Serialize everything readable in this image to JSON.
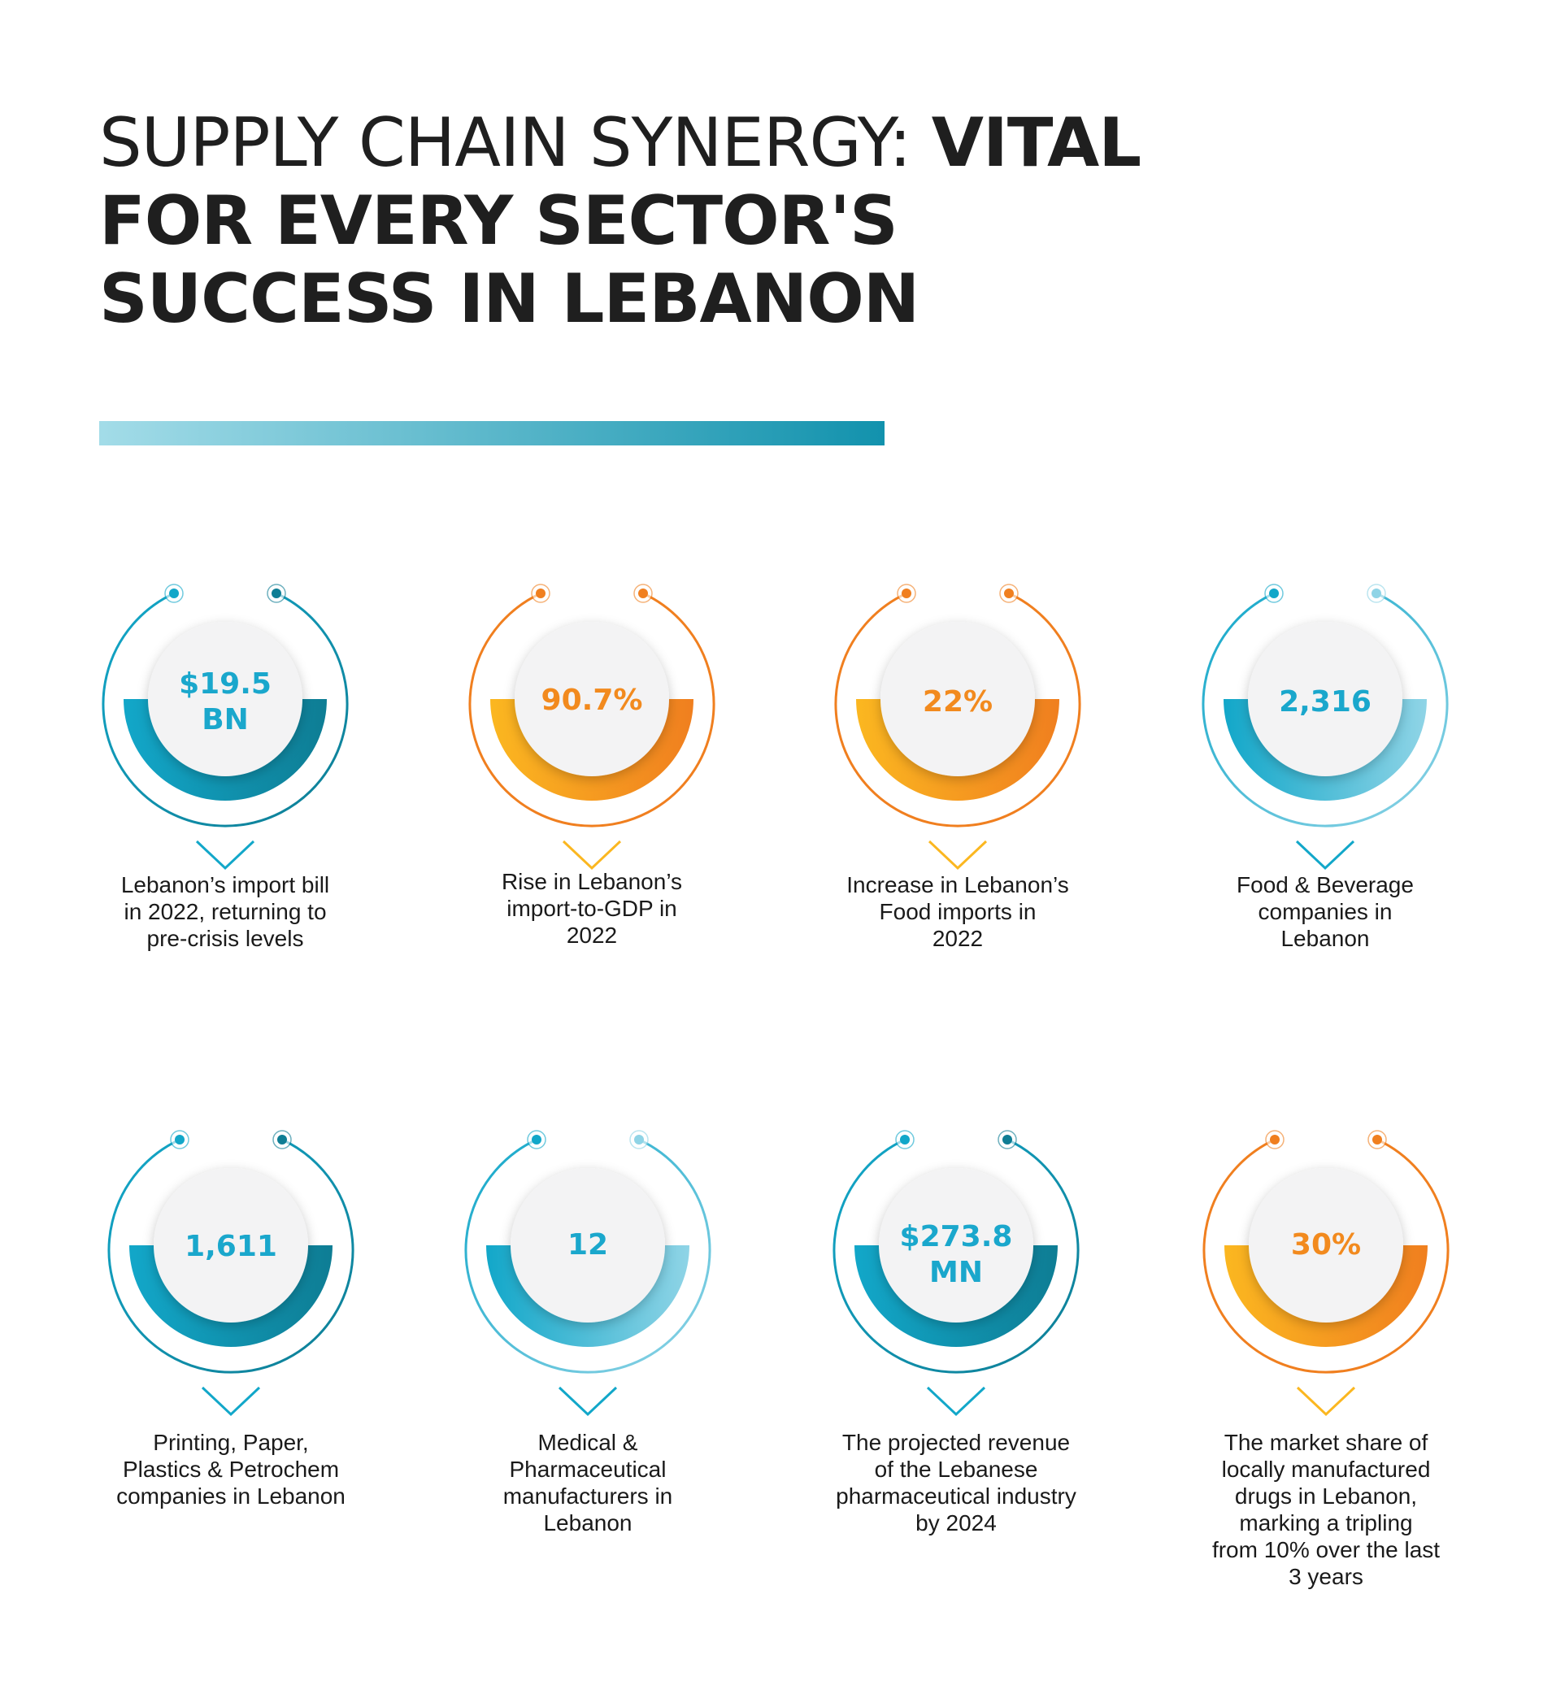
{
  "header": {
    "title_light": "SUPPLY CHAIN SYNERGY: ",
    "title_bold": "VITAL FOR EVERY SECTOR'S SUCCESS IN LEBANON"
  },
  "colors": {
    "blue_text": "#1aa7cc",
    "orange_text": "#f28a1e",
    "blue_dark": "#0e7d94",
    "blue_mid": "#12a7c9",
    "blue_light": "#8fd4e6",
    "orange_dark": "#f07f1f",
    "orange_light": "#fbb720"
  },
  "stats": [
    {
      "value": "$19.5\nBN",
      "description": "Lebanon’s import bill\nin 2022, returning to\npre-crisis levels",
      "theme": "blue-dark"
    },
    {
      "value": "90.7%",
      "description": "Rise in Lebanon’s\nimport-to-GDP in\n2022",
      "theme": "orange"
    },
    {
      "value": "22%",
      "description": "Increase in Lebanon’s\nFood imports in\n2022",
      "theme": "orange"
    },
    {
      "value": "2,316",
      "description": "Food & Beverage\ncompanies in\nLebanon",
      "theme": "blue-light"
    },
    {
      "value": "1,611",
      "description": "Printing, Paper,\nPlastics & Petrochem\ncompanies in Lebanon",
      "theme": "blue-dark"
    },
    {
      "value": "12",
      "description": "Medical &\nPharmaceutical\nmanufacturers in\nLebanon",
      "theme": "blue-light"
    },
    {
      "value": "$273.8\nMN",
      "description": "The projected revenue\nof the Lebanese\npharmaceutical industry\nby 2024",
      "theme": "blue-dark"
    },
    {
      "value": "30%",
      "description": "The market share of\nlocally manufactured\ndrugs in Lebanon,\nmarking a tripling\nfrom 10% over the last\n3 years",
      "theme": "orange"
    }
  ]
}
